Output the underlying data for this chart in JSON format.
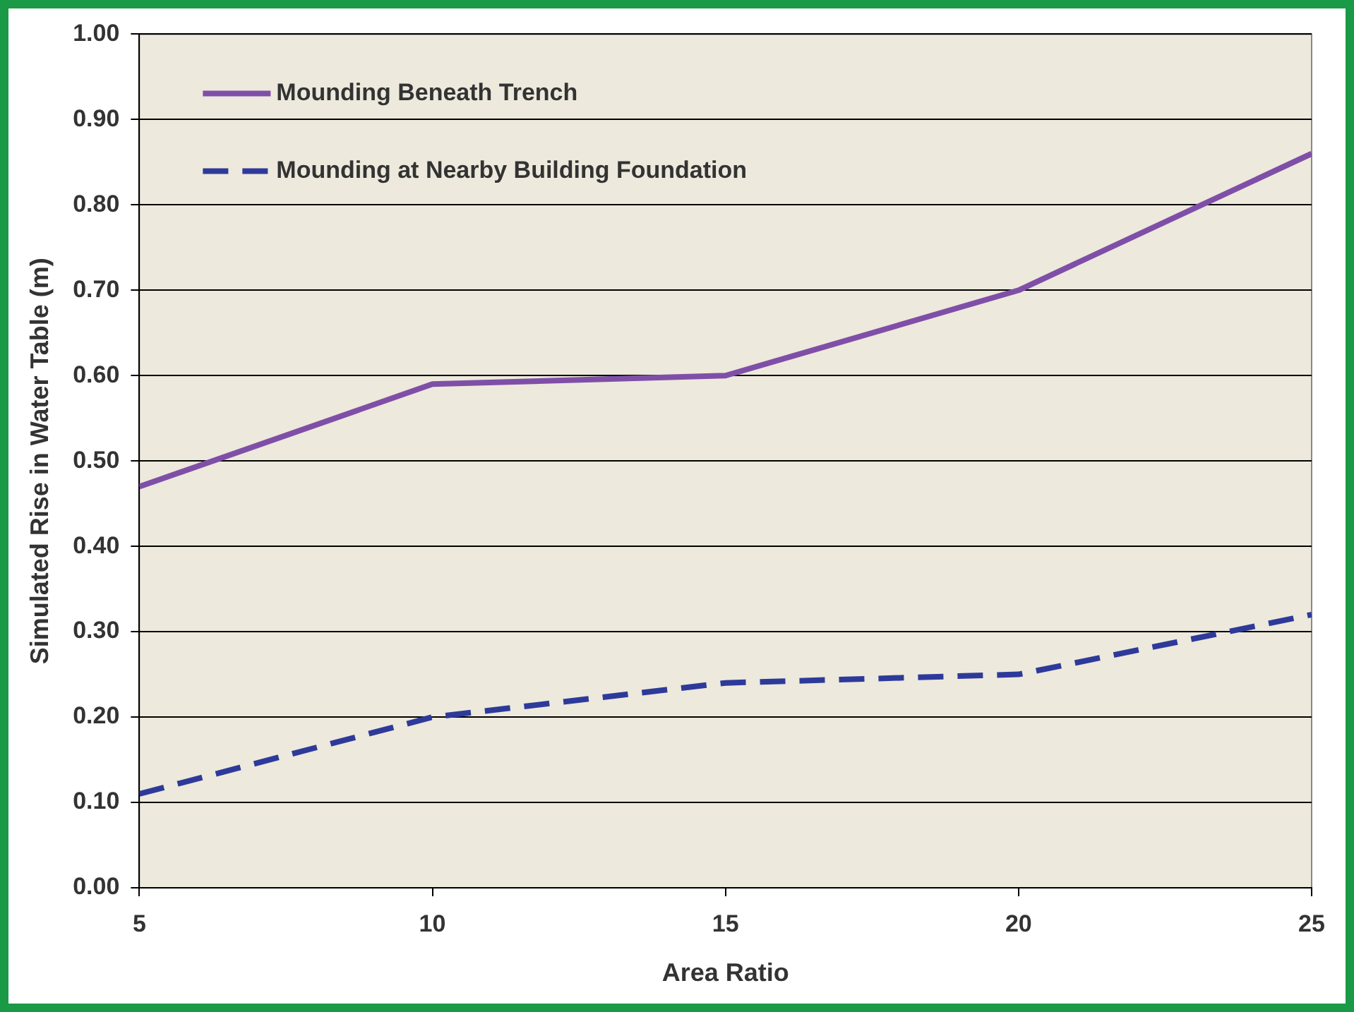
{
  "chart_data": {
    "type": "line",
    "xlabel": "Area Ratio",
    "ylabel": "Simulated Rise in Water Table (m)",
    "x": [
      5,
      10,
      15,
      20,
      25
    ],
    "series": [
      {
        "name": "Mounding Beneath Trench",
        "color": "#7f4fa8",
        "values": [
          0.47,
          0.59,
          0.6,
          0.7,
          0.86
        ],
        "line_style": "solid"
      },
      {
        "name": "Mounding at Nearby Building Foundation",
        "color": "#2e3a9a",
        "values": [
          0.11,
          0.2,
          0.24,
          0.25,
          0.32
        ],
        "line_style": "dashed"
      }
    ],
    "xlim": [
      5,
      25
    ],
    "xticks": [
      5,
      10,
      15,
      20,
      25
    ],
    "ylim": [
      0,
      1
    ],
    "yticks": [
      {
        "value": 0,
        "label": "0.00"
      },
      {
        "value": 0.1,
        "label": "0.10"
      },
      {
        "value": 0.2,
        "label": "0.20"
      },
      {
        "value": 0.3,
        "label": "0.30"
      },
      {
        "value": 0.4,
        "label": "0.40"
      },
      {
        "value": 0.5,
        "label": "0.50"
      },
      {
        "value": 0.6,
        "label": "0.60"
      },
      {
        "value": 0.7,
        "label": "0.70"
      },
      {
        "value": 0.8,
        "label": "0.80"
      },
      {
        "value": 0.9,
        "label": "0.90"
      },
      {
        "value": 1,
        "label": "1.00"
      }
    ],
    "grid": "y",
    "legend": "top left",
    "marker": "none"
  }
}
